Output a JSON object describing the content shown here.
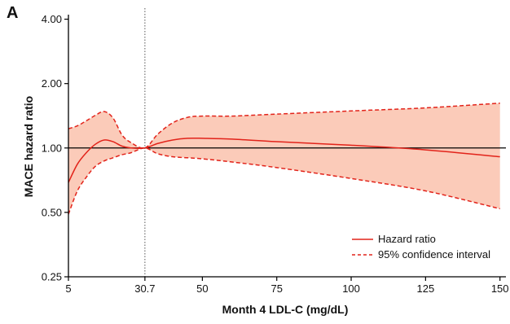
{
  "panel_label": "A",
  "colors": {
    "hazard_line": "#e2231a",
    "ci_fill": "#fbcbb9",
    "reference_line": "#000000",
    "vline": "#555555"
  },
  "chart_data": {
    "type": "line",
    "title": "",
    "xlabel": "Month 4 LDL-C (mg/dL)",
    "ylabel": "MACE hazard ratio",
    "x_scale": "linear",
    "y_scale": "log",
    "xlim": [
      5,
      152
    ],
    "ylim": [
      0.25,
      4.2
    ],
    "x_ticks": [
      5,
      30.7,
      50,
      75,
      100,
      125,
      150
    ],
    "x_tick_labels": [
      "5",
      "30.7",
      "50",
      "75",
      "100",
      "125",
      "150"
    ],
    "y_ticks": [
      0.25,
      0.5,
      1.0,
      2.0,
      4.0
    ],
    "y_tick_labels": [
      "0.25",
      "0.50",
      "1.00",
      "2.00",
      "4.00"
    ],
    "reference_y": 1.0,
    "reference_x": 30.7,
    "legend_position": "bottom-right",
    "series": [
      {
        "name": "Hazard ratio",
        "style": "solid",
        "x": [
          5,
          8,
          11,
          14,
          17,
          20,
          23,
          26,
          30.7,
          35,
          40,
          45,
          50,
          60,
          75,
          100,
          125,
          150
        ],
        "y": [
          0.69,
          0.84,
          0.95,
          1.04,
          1.09,
          1.07,
          1.02,
          1.0,
          1.0,
          1.05,
          1.09,
          1.11,
          1.11,
          1.1,
          1.07,
          1.03,
          0.98,
          0.91
        ]
      },
      {
        "name": "95% confidence interval",
        "style": "dashed",
        "x": [
          5,
          8,
          11,
          14,
          17,
          20,
          23,
          26,
          30.7,
          35,
          40,
          45,
          50,
          60,
          75,
          100,
          125,
          150
        ],
        "upper": [
          1.23,
          1.27,
          1.34,
          1.42,
          1.48,
          1.38,
          1.15,
          1.06,
          1.0,
          1.16,
          1.31,
          1.39,
          1.41,
          1.41,
          1.44,
          1.49,
          1.54,
          1.62
        ],
        "lower": [
          0.49,
          0.63,
          0.73,
          0.82,
          0.87,
          0.9,
          0.93,
          0.95,
          1.0,
          0.94,
          0.91,
          0.9,
          0.89,
          0.86,
          0.81,
          0.72,
          0.63,
          0.52
        ]
      }
    ]
  }
}
